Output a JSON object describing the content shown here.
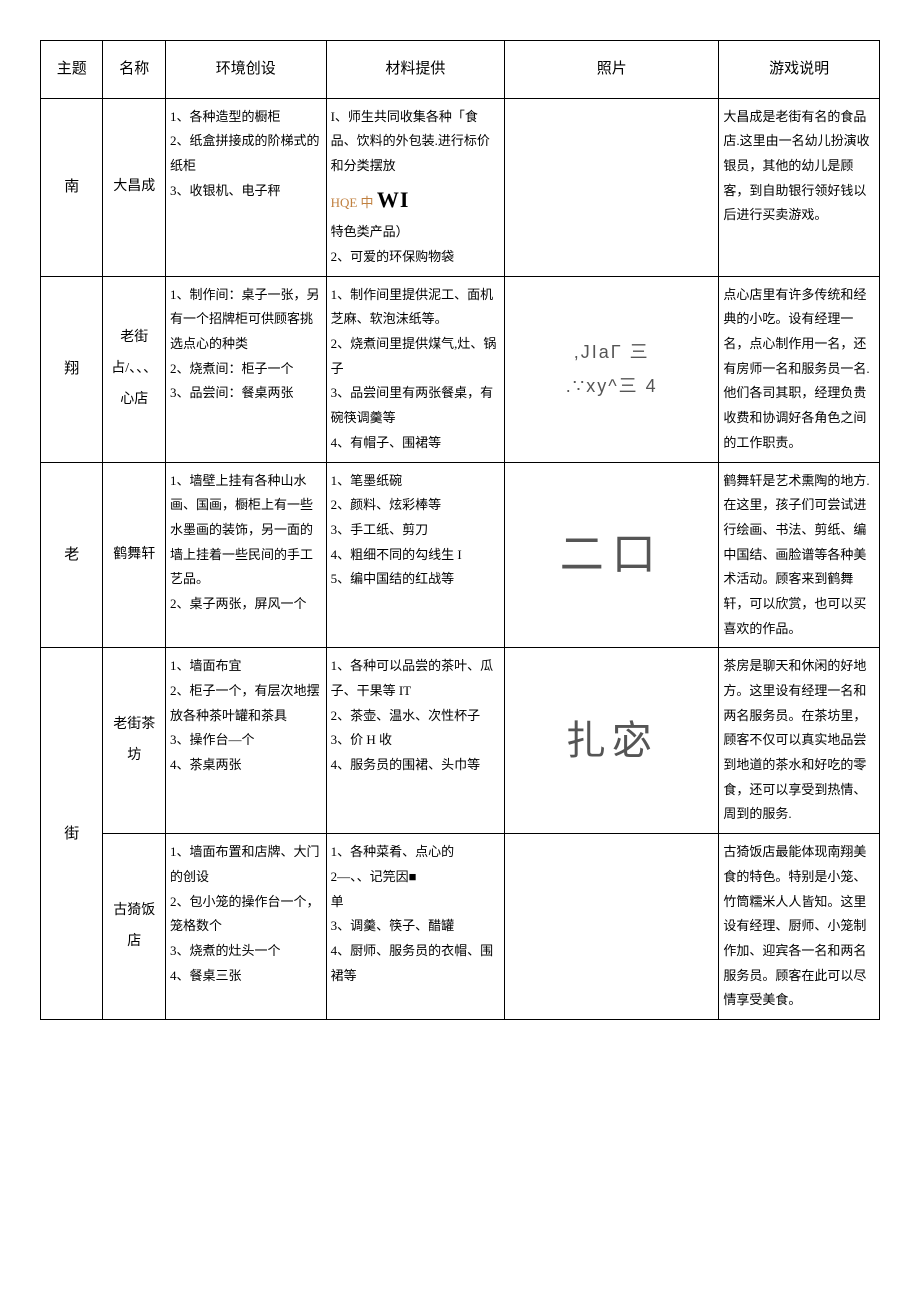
{
  "headers": {
    "topic": "主题",
    "name": "名称",
    "env": "环境创设",
    "material": "材料提供",
    "photo": "照片",
    "desc": "游戏说明"
  },
  "topic_chars": [
    "南",
    "翔",
    "老",
    "街"
  ],
  "rows": [
    {
      "name": "大昌成",
      "env_lines": [
        "1、各种造型的橱柜",
        "2、纸盒拼接成的阶梯式的纸柜",
        "3、收银机、电子秤"
      ],
      "mat_pre": "I、师生共同收集各种「食品、饮料的外包装.进行标价和分类摆放",
      "mat_hq": "HQE 中",
      "mat_wi": "WI",
      "mat_post1": "特色类产品）",
      "mat_post2": "2、可爱的环保购物袋",
      "photo": "",
      "desc": "大昌成是老街有名的食品店.这里由一名幼儿扮演收银员，其他的幼儿是顾客，到自助银行领好钱以后进行买卖游戏。"
    },
    {
      "name": "老街占/、、、心店",
      "env": "1、制作间：桌子一张，另有一个招牌柜可供顾客挑选点心的种类\n2、烧煮间：柜子一个\n3、品尝间：餐桌两张",
      "mat": "1、制作间里提供泥工、面机芝麻、软泡沫纸等。\n2、烧煮间里提供煤气,灶、锅子\n3、品尝间里有两张餐桌，有碗筷调羹等\n4、有帽子、围裙等",
      "photo_a": ",JIaΓ 三",
      "photo_b": ".∵xy^三 4",
      "desc": "点心店里有许多传统和经典的小吃。设有经理一名，点心制作用一名，还有房师一名和服务员一名.他们各司其职，经理负贵收费和协调好各角色之间的工作职责。"
    },
    {
      "name": "鹤舞轩",
      "env": "1、墙壁上挂有各种山水画、国画，橱柜上有一些水墨画的装饰，另一面的墙上挂着一些民间的手工艺品。\n2、桌子两张，屏风一个",
      "mat": "1、笔墨纸碗\n2、颜料、炫彩棒等\n3、手工纸、剪刀\n4、粗细不同的勾线生 I\n5、编中国结的红战等",
      "photo": "二口",
      "desc": "鹤舞轩是艺术熏陶的地方.在这里，孩子们可尝试进行绘画、书法、剪纸、编中国结、画脸谱等各种美术活动。顾客来到鹤舞轩，可以欣赏，也可以买喜欢的作品。"
    },
    {
      "name": "老街茶坊",
      "env": "1、墙面布宜\n2、柜子一个，有层次地摆放各种茶叶罐和茶具\n3、操作台—个\n4、茶桌两张",
      "mat": "1、各种可以品尝的茶叶、瓜子、干果等 IT\n2、茶壶、温水、次性杯子\n3、价 H 收\n4、服务员的围裙、头巾等",
      "photo": "扎宓",
      "desc": "茶房是聊天和休闲的好地方。这里设有经理一名和两名服务员。在茶坊里，顾客不仅可以真实地品尝到地道的茶水和好吃的零食，还可以享受到热情、周到的服务."
    },
    {
      "name": "古猗饭店",
      "env": "1、墙面布置和店牌、大门的创设\n2、包小笼的操作台一个，笼格数个\n3、烧煮的灶头一个\n4、餐桌三张",
      "mat": "1、各种菜肴、点心的\n2—、、记笎因■\n单\n3、调羹、筷子、醋罐\n4、厨师、服务员的衣帽、围裙等",
      "photo": "",
      "desc": "古猗饭店最能体现南翔美食的特色。特别是小笼、竹筒糯米人人皆知。这里设有经理、厨师、小笼制作加、迎宾各一名和两名服务员。顾客在此可以尽情享受美食。"
    }
  ]
}
